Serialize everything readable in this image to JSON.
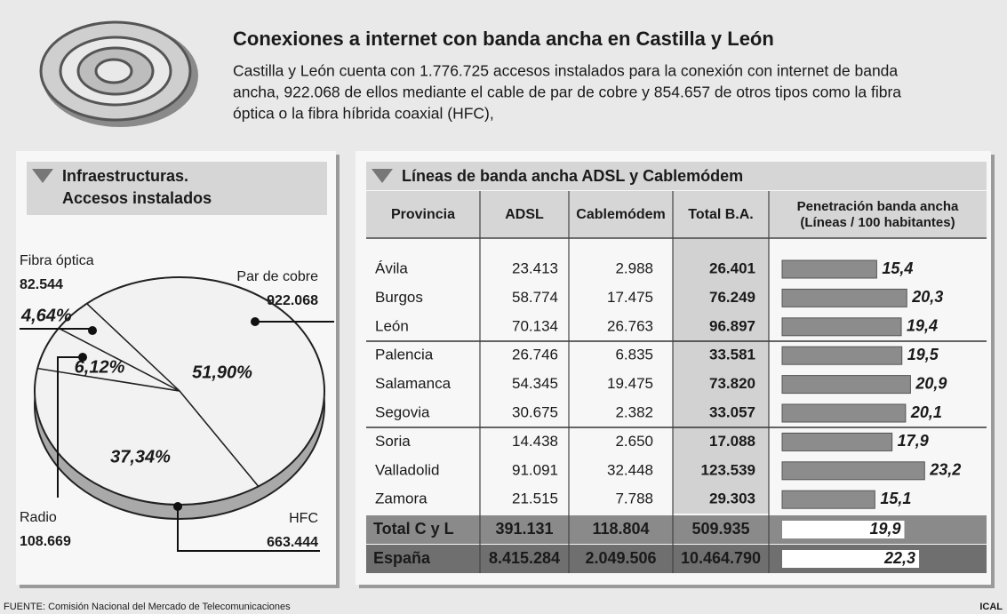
{
  "header": {
    "title": "Conexiones a internet con banda ancha en Castilla y León",
    "lines": [
      "Castilla y León cuenta con 1.776.725 accesos instalados para la conexión con internet de banda",
      "ancha, 922.068 de ellos mediante el cable de par de cobre y 854.657 de  otros tipos como la fibra",
      "óptica o la fibra híbrida coaxial (HFC),"
    ]
  },
  "chart_data": {
    "type": "pie",
    "title": [
      "Infraestructuras.",
      "Accesos instalados"
    ],
    "categories": [
      "Par de cobre",
      "HFC",
      "Radio",
      "Fibra óptica"
    ],
    "values": [
      51.9,
      37.34,
      6.12,
      4.64
    ],
    "value_labels": [
      "51,90%",
      "37,34%",
      "6,12%",
      "4,64%"
    ],
    "count_labels": [
      "922.068",
      "663.444",
      "108.669",
      "82.544"
    ]
  },
  "table": {
    "title": "Líneas de banda ancha ADSL y Cablemódem",
    "columns": [
      "Provincia",
      "ADSL",
      "Cablemódem",
      "Total B.A.",
      [
        "Penetración banda ancha",
        "(Líneas / 100 habitantes)"
      ]
    ],
    "xlim": [
      0,
      33
    ],
    "rows": [
      {
        "cells": [
          "Ávila",
          "23.413",
          "2.988",
          "26.401"
        ],
        "penetration": {
          "value": 15.4,
          "label": "15,4"
        }
      },
      {
        "cells": [
          "Burgos",
          "58.774",
          "17.475",
          "76.249"
        ],
        "penetration": {
          "value": 20.3,
          "label": "20,3"
        }
      },
      {
        "cells": [
          "León",
          "70.134",
          "26.763",
          "96.897"
        ],
        "penetration": {
          "value": 19.4,
          "label": "19,4"
        }
      },
      {
        "cells": [
          "Palencia",
          "26.746",
          "6.835",
          "33.581"
        ],
        "penetration": {
          "value": 19.5,
          "label": "19,5"
        }
      },
      {
        "cells": [
          "Salamanca",
          "54.345",
          "19.475",
          "73.820"
        ],
        "penetration": {
          "value": 20.9,
          "label": "20,9"
        }
      },
      {
        "cells": [
          "Segovia",
          "30.675",
          "2.382",
          "33.057"
        ],
        "penetration": {
          "value": 20.1,
          "label": "20,1"
        }
      },
      {
        "cells": [
          "Soria",
          "14.438",
          "2.650",
          "17.088"
        ],
        "penetration": {
          "value": 17.9,
          "label": "17,9"
        }
      },
      {
        "cells": [
          "Valladolid",
          "91.091",
          "32.448",
          "123.539"
        ],
        "penetration": {
          "value": 23.2,
          "label": "23,2"
        }
      },
      {
        "cells": [
          "Zamora",
          "21.515",
          "7.788",
          "29.303"
        ],
        "penetration": {
          "value": 15.1,
          "label": "15,1"
        }
      }
    ],
    "totals": [
      {
        "cells": [
          "Total C y L",
          "391.131",
          "118.804",
          "509.935"
        ],
        "penetration": {
          "value": 19.9,
          "label": "19,9"
        }
      },
      {
        "cells": [
          "España",
          "8.415.284",
          "2.049.506",
          "10.464.790"
        ],
        "penetration": {
          "value": 22.3,
          "label": "22,3"
        }
      }
    ]
  },
  "footer": {
    "source": "FUENTE: Comisión Nacional del Mercado de Telecomunicaciones",
    "credit": "ICAL"
  }
}
